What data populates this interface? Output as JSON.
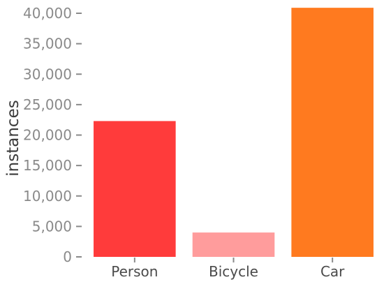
{
  "chart_data": {
    "type": "bar",
    "categories": [
      "Person",
      "Bicycle",
      "Car"
    ],
    "values": [
      22300,
      4000,
      40900
    ],
    "colors": [
      "#ff3b3b",
      "#ff9c9c",
      "#ff7a1f"
    ],
    "ylabel": "instances",
    "xlabel": "",
    "title": "",
    "ylim": [
      0,
      41500
    ],
    "yticks": [
      0,
      5000,
      10000,
      15000,
      20000,
      25000,
      30000,
      35000,
      40000
    ],
    "ytick_labels": [
      "0",
      "5,000",
      "10,000",
      "15,000",
      "20,000",
      "25,000",
      "30,000",
      "35,000",
      "40,000"
    ],
    "grid": false,
    "legend": "none"
  }
}
